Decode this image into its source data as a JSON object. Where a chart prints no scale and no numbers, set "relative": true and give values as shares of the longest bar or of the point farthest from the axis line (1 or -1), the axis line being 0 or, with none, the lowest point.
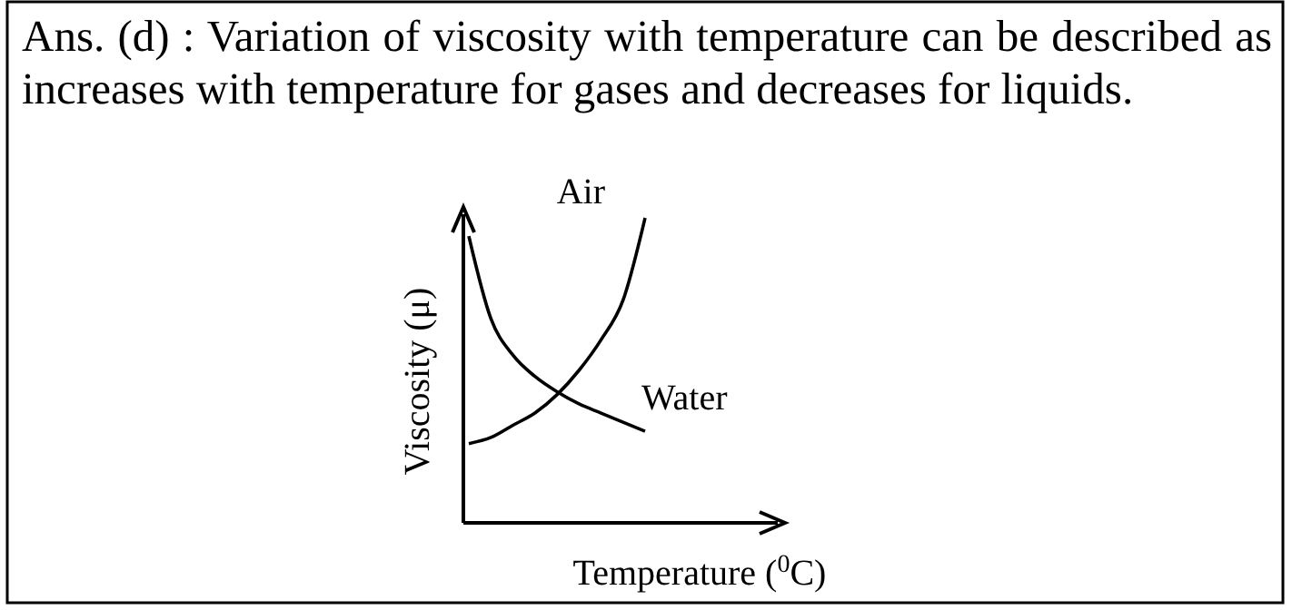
{
  "chart_data": {
    "type": "line",
    "relative": true,
    "title": "Ans. (d) : Variation of viscosity with temperature can be described as increases with temperature for gases and decreases for liquids.",
    "xlabel": "Temperature ($^{0}$C)",
    "ylabel": "Viscosity (μ)",
    "categories": [
      null,
      null,
      null,
      null,
      null,
      null,
      null,
      null,
      null
    ],
    "series": [
      {
        "name": "Air",
        "color": "#000000",
        "values": [
          0.26,
          0.28,
          0.32,
          0.36,
          0.42,
          0.5,
          0.6,
          0.73,
          1
        ]
      },
      {
        "name": "Water",
        "color": "#000000",
        "values": [
          0.94,
          0.67,
          0.55,
          0.48,
          0.43,
          0.39,
          0.36,
          0.33,
          0.3
        ]
      }
    ]
  }
}
